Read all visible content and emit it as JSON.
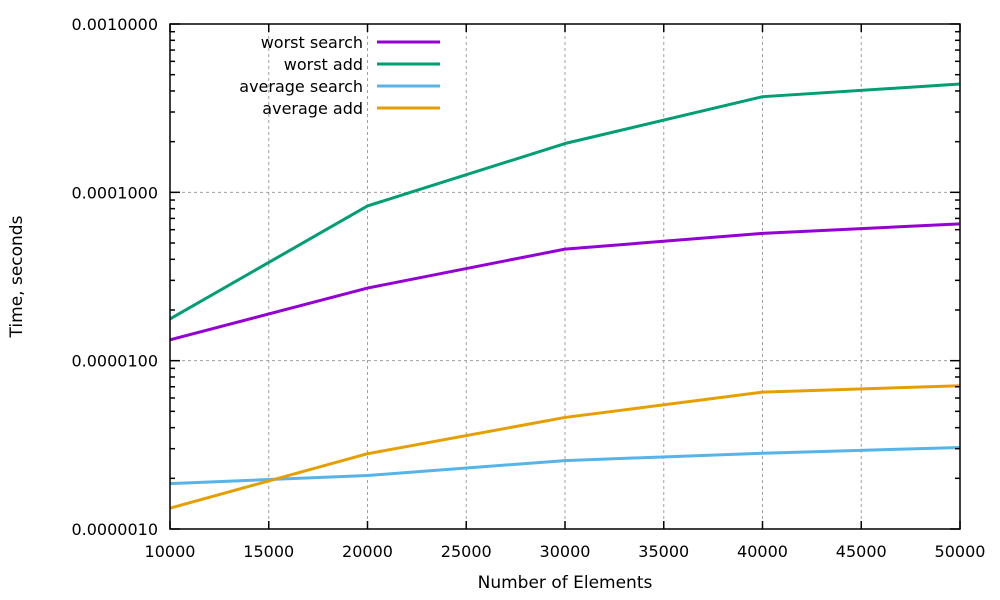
{
  "chart_data": {
    "type": "line",
    "title": "",
    "xlabel": "Number of Elements",
    "ylabel": "Time, seconds",
    "xlim": [
      10000,
      50000
    ],
    "ylim": [
      1e-06,
      0.001
    ],
    "yscale": "log",
    "grid": true,
    "legend_position": "top-left",
    "x": [
      10000,
      20000,
      30000,
      40000,
      50000
    ],
    "x_ticks": [
      "10000",
      "15000",
      "20000",
      "25000",
      "30000",
      "35000",
      "40000",
      "45000",
      "50000"
    ],
    "y_ticks": [
      "0.0000010",
      "0.0000100",
      "0.0001000",
      "0.0010000"
    ],
    "series": [
      {
        "name": "worst search",
        "color": "#9400d3",
        "values": [
          1.33e-05,
          2.7e-05,
          4.6e-05,
          5.7e-05,
          6.5e-05
        ]
      },
      {
        "name": "worst add",
        "color": "#009e73",
        "values": [
          1.77e-05,
          8.3e-05,
          0.000195,
          0.00037,
          0.00044
        ]
      },
      {
        "name": "average search",
        "color": "#56b4e9",
        "values": [
          1.86e-06,
          2.08e-06,
          2.55e-06,
          2.82e-06,
          3.05e-06
        ]
      },
      {
        "name": "average add",
        "color": "#e69f00",
        "values": [
          1.33e-06,
          2.8e-06,
          4.6e-06,
          6.5e-06,
          7.1e-06
        ]
      }
    ]
  }
}
